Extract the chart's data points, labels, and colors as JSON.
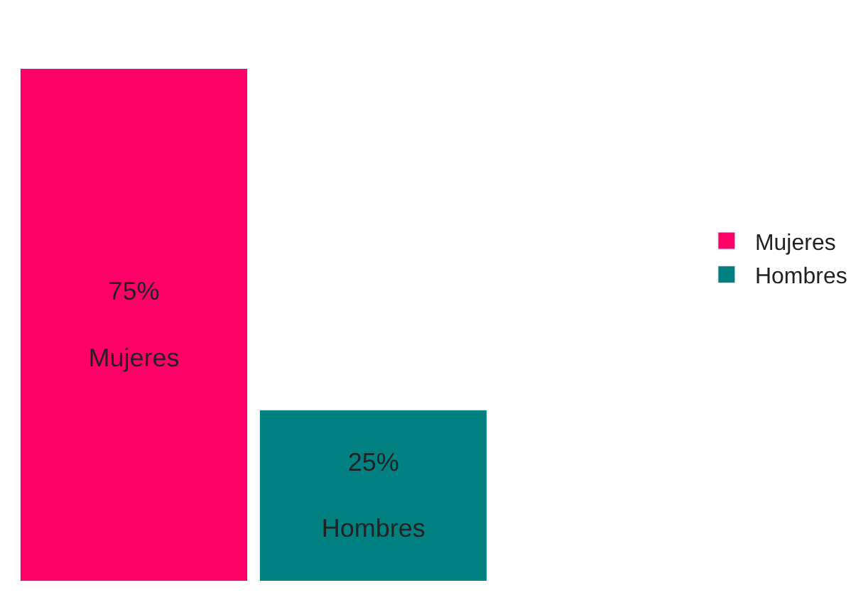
{
  "chart_data": {
    "type": "bar",
    "categories": [
      "Mujeres",
      "Hombres"
    ],
    "stacked": true,
    "series": [
      {
        "name": "Mujeres",
        "color": "#ff0066",
        "values": [
          75,
          null
        ],
        "value_labels": [
          "75%",
          null
        ]
      },
      {
        "name": "Hombres",
        "color": "#008080",
        "values": [
          null,
          25
        ],
        "value_labels": [
          null,
          "25%"
        ]
      }
    ],
    "tick_labels": false,
    "legend": "right"
  }
}
